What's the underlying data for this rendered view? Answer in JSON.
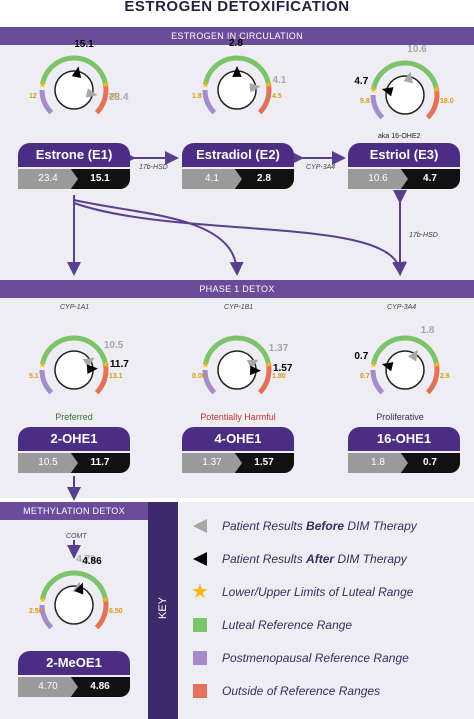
{
  "title": "ESTROGEN DETOXIFICATION",
  "sections": {
    "circulation": "ESTROGEN IN CIRCULATION",
    "phase1": "PHASE 1 DETOX",
    "methylation": "METHYLATION DETOX",
    "key": "KEY"
  },
  "colors": {
    "purple": "#6b4c9a",
    "dark_purple": "#4b2d84",
    "green": "#7dc36b",
    "lavender": "#a48ccc",
    "red": "#e2735a",
    "gold": "#f5b81c"
  },
  "nodes": {
    "e1": {
      "name": "Estrone (E1)",
      "before": "23.4",
      "after": "15.1",
      "low": "12",
      "high": "26",
      "before_pct": 0.88,
      "after_pct": 0.54
    },
    "e2": {
      "name": "Estradiol (E2)",
      "before": "4.1",
      "after": "2.8",
      "low": "1.8",
      "high": "4.5",
      "before_pct": 0.8,
      "after_pct": 0.5
    },
    "e3": {
      "name": "Estriol (E3)",
      "before": "10.6",
      "after": "4.7",
      "low": "5.8",
      "high": "18.0",
      "before_pct": 0.55,
      "after_pct": 0.22,
      "aka": "aka 16-OHE2"
    },
    "ohe2": {
      "name": "2-OHE1",
      "before": "10.5",
      "after": "11.7",
      "low": "5.1",
      "high": "13.1",
      "before_pct": 0.72,
      "after_pct": 0.82,
      "status": "Preferred"
    },
    "ohe4": {
      "name": "4-OHE1",
      "before": "1.37",
      "after": "1.57",
      "low": "0.00",
      "high": "1.80",
      "before_pct": 0.74,
      "after_pct": 0.84,
      "status": "Potentially Harmful"
    },
    "ohe16": {
      "name": "16-OHE1",
      "before": "1.8",
      "after": "0.7",
      "low": "0.7",
      "high": "2.6",
      "before_pct": 0.62,
      "after_pct": 0.22,
      "status": "Proliferative"
    },
    "meoe": {
      "name": "2-MeOE1",
      "before": "4.70",
      "after": "4.86",
      "low": "2.50",
      "high": "6.50",
      "before_pct": 0.55,
      "after_pct": 0.58
    }
  },
  "enzymes": {
    "e1_e2": "17b-HSD",
    "e2_e3": "CYP-3A4",
    "e3_ohe16": "17b-HSD",
    "cyp1a1": "CYP-1A1",
    "cyp1b1": "CYP-1B1",
    "cyp3a4": "CYP-3A4",
    "comt": "COMT"
  },
  "legend": [
    {
      "icon": "gray-triangle-icon",
      "pre": "Patient Results ",
      "bold": "Before",
      "post": " DIM Therapy"
    },
    {
      "icon": "black-triangle-icon",
      "pre": "Patient Results ",
      "bold": "After",
      "post": " DIM Therapy"
    },
    {
      "icon": "gold-star-icon",
      "pre": "Lower/Upper Limits of Luteal Range",
      "bold": "",
      "post": ""
    },
    {
      "icon": "green-square-icon",
      "pre": "Luteal Reference Range",
      "bold": "",
      "post": ""
    },
    {
      "icon": "lavender-square-icon",
      "pre": "Postmenopausal Reference Range",
      "bold": "",
      "post": ""
    },
    {
      "icon": "red-square-icon",
      "pre": "Outside of Reference Ranges",
      "bold": "",
      "post": ""
    }
  ]
}
